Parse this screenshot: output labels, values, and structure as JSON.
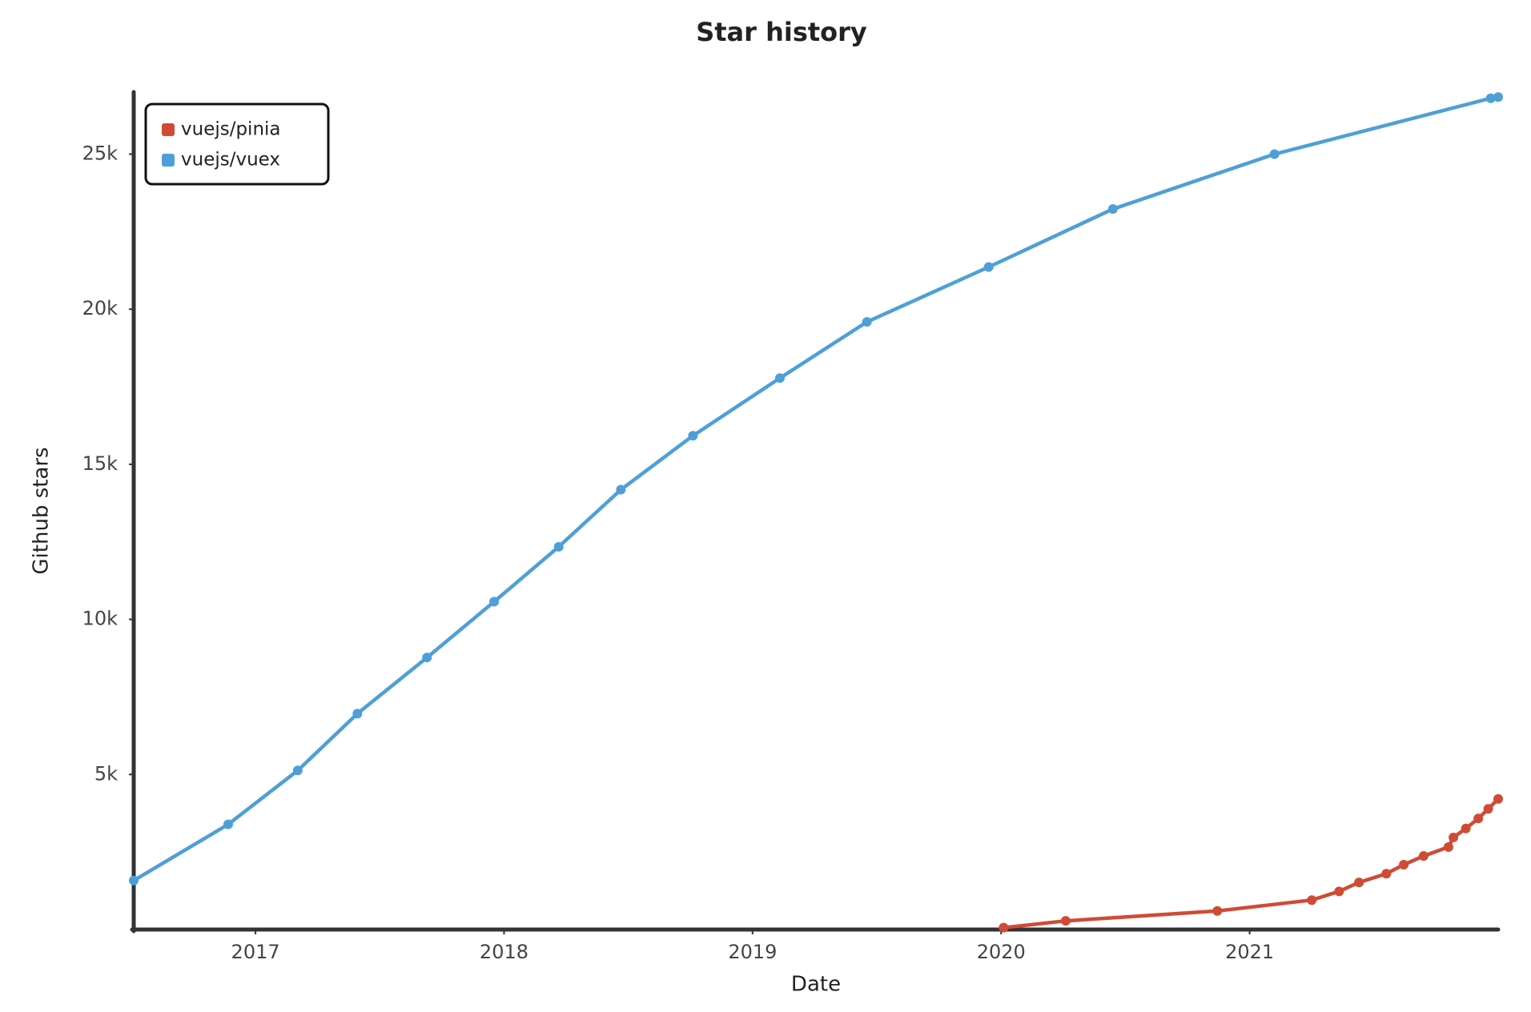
{
  "chart_data": {
    "type": "line",
    "title": "Star history",
    "x_label": "Date",
    "y_label": "Github stars",
    "series": [
      {
        "name": "vuejs/pinia",
        "color": "#cf4b35",
        "x": [
          2020.01,
          2020.26,
          2020.87,
          2021.25,
          2021.36,
          2021.44,
          2021.55,
          2021.62,
          2021.7,
          2021.8,
          2021.82,
          2021.87,
          2021.92,
          2021.96,
          2022.0
        ],
        "values": [
          60,
          280,
          600,
          950,
          1230,
          1520,
          1800,
          2090,
          2370,
          2660,
          2970,
          3260,
          3580,
          3890,
          4210
        ]
      },
      {
        "name": "vuejs/vuex",
        "color": "#4e9fd8",
        "x": [
          2016.51,
          2016.89,
          2017.17,
          2017.41,
          2017.69,
          2017.96,
          2018.22,
          2018.47,
          2018.76,
          2019.11,
          2019.46,
          2019.95,
          2020.45,
          2021.1,
          2021.97,
          2022.0
        ],
        "values": [
          1580,
          3390,
          5130,
          6960,
          8770,
          10570,
          12340,
          14180,
          15920,
          17780,
          19590,
          21360,
          23230,
          25000,
          26800,
          26840
        ]
      }
    ],
    "xlim": [
      2016.51,
      2022.0
    ],
    "xticks": [
      2017,
      2018,
      2019,
      2020,
      2021
    ],
    "ylim": [
      0,
      27000
    ],
    "yticks": [
      {
        "value": 5000,
        "label": "5k"
      },
      {
        "value": 10000,
        "label": "10k"
      },
      {
        "value": 15000,
        "label": "15k"
      },
      {
        "value": 20000,
        "label": "20k"
      },
      {
        "value": 25000,
        "label": "25k"
      }
    ],
    "legend": "top-left"
  }
}
